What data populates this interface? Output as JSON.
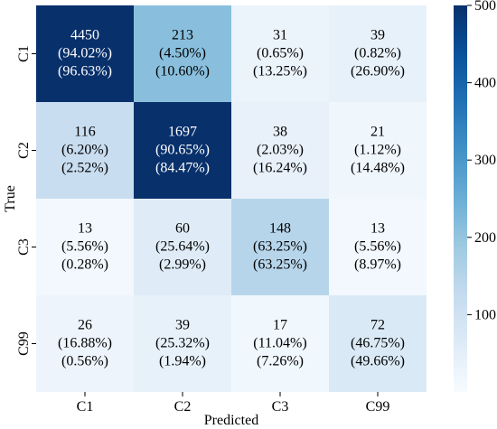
{
  "chart_data": {
    "type": "heatmap",
    "title": "",
    "xlabel": "Predicted",
    "ylabel": "True",
    "x_categories": [
      "C1",
      "C2",
      "C3",
      "C99"
    ],
    "y_categories": [
      "C1",
      "C2",
      "C3",
      "C99"
    ],
    "cells": [
      [
        {
          "count": "4450",
          "row_pct": "(94.02%)",
          "col_pct": "(96.63%)"
        },
        {
          "count": "213",
          "row_pct": "(4.50%)",
          "col_pct": "(10.60%)"
        },
        {
          "count": "31",
          "row_pct": "(0.65%)",
          "col_pct": "(13.25%)"
        },
        {
          "count": "39",
          "row_pct": "(0.82%)",
          "col_pct": "(26.90%)"
        }
      ],
      [
        {
          "count": "116",
          "row_pct": "(6.20%)",
          "col_pct": "(2.52%)"
        },
        {
          "count": "1697",
          "row_pct": "(90.65%)",
          "col_pct": "(84.47%)"
        },
        {
          "count": "38",
          "row_pct": "(2.03%)",
          "col_pct": "(16.24%)"
        },
        {
          "count": "21",
          "row_pct": "(1.12%)",
          "col_pct": "(14.48%)"
        }
      ],
      [
        {
          "count": "13",
          "row_pct": "(5.56%)",
          "col_pct": "(0.28%)"
        },
        {
          "count": "60",
          "row_pct": "(25.64%)",
          "col_pct": "(2.99%)"
        },
        {
          "count": "148",
          "row_pct": "(63.25%)",
          "col_pct": "(63.25%)"
        },
        {
          "count": "13",
          "row_pct": "(5.56%)",
          "col_pct": "(8.97%)"
        }
      ],
      [
        {
          "count": "26",
          "row_pct": "(16.88%)",
          "col_pct": "(0.56%)"
        },
        {
          "count": "39",
          "row_pct": "(25.32%)",
          "col_pct": "(1.94%)"
        },
        {
          "count": "17",
          "row_pct": "(11.04%)",
          "col_pct": "(7.26%)"
        },
        {
          "count": "72",
          "row_pct": "(46.75%)",
          "col_pct": "(49.66%)"
        }
      ]
    ],
    "colorbar": {
      "min": 0,
      "max": 500,
      "ticks": [
        100,
        200,
        300,
        400,
        500
      ],
      "tick_labels": [
        "100",
        "200",
        "300",
        "400",
        "500"
      ],
      "colormap": "Blues",
      "low_color": "#f7fbff",
      "high_color": "#08306b"
    },
    "grid": false
  }
}
